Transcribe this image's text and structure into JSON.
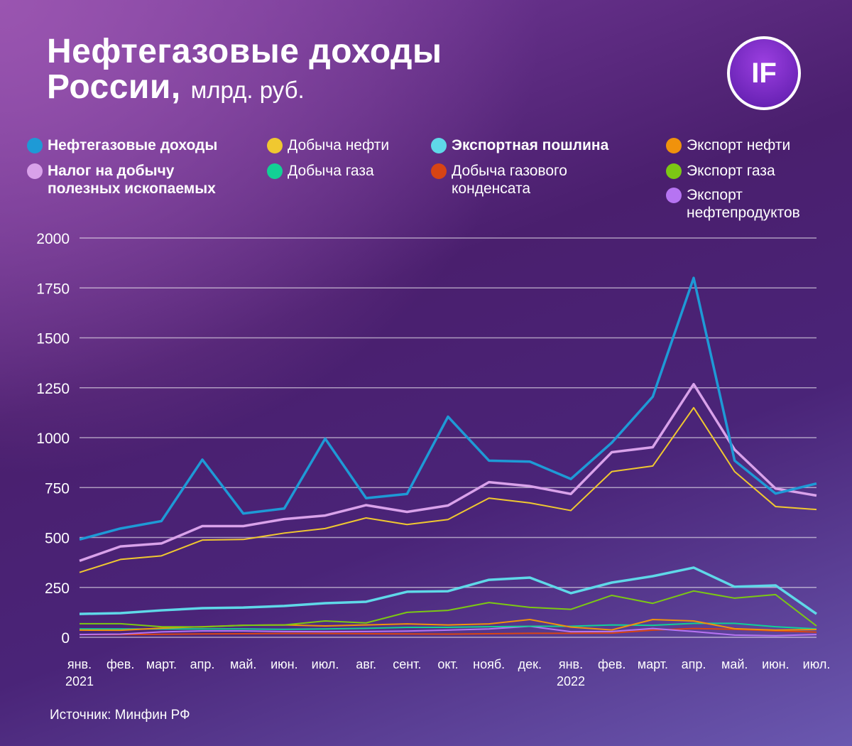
{
  "title": {
    "line1": "Нефтегазовые доходы",
    "line2": "России,",
    "unit": "млрд. руб."
  },
  "logo": "IF",
  "source": "Источник: Минфин РФ",
  "chart_data": {
    "type": "line",
    "ylim": [
      0,
      2000
    ],
    "yticks": [
      "0",
      "250",
      "500",
      "750",
      "1000",
      "1250",
      "1500",
      "1750",
      "2000"
    ],
    "ytick_values": [
      0,
      250,
      500,
      750,
      1000,
      1250,
      1500,
      1750,
      2000
    ],
    "grid": true,
    "legend_position": "top",
    "categories": [
      "янв.",
      "фев.",
      "март.",
      "апр.",
      "май.",
      "июн.",
      "июл.",
      "авг.",
      "сент.",
      "окт.",
      "нояб.",
      "дек.",
      "янв.",
      "фев.",
      "март.",
      "апр.",
      "май.",
      "июн.",
      "июл."
    ],
    "years": [
      {
        "index": 0,
        "label": "2021"
      },
      {
        "index": 12,
        "label": "2022"
      }
    ],
    "series": [
      {
        "name": "Нефтегазовые доходы",
        "color": "#1e9ad6",
        "bold": true,
        "width": 3.5,
        "values": [
          490,
          545,
          582,
          890,
          620,
          645,
          995,
          697,
          718,
          1105,
          885,
          880,
          793,
          975,
          1205,
          1800,
          885,
          720,
          770
        ]
      },
      {
        "name": "Налог на добычу полезных ископаемых",
        "color": "#d9a2ea",
        "bold": true,
        "width": 3.5,
        "values": [
          383,
          455,
          470,
          557,
          557,
          592,
          610,
          662,
          628,
          660,
          777,
          757,
          718,
          927,
          952,
          1268,
          940,
          745,
          710
        ]
      },
      {
        "name": "Добыча нефти",
        "color": "#f0c830",
        "bold": false,
        "width": 2,
        "values": [
          325,
          390,
          408,
          487,
          490,
          522,
          545,
          598,
          565,
          590,
          697,
          673,
          635,
          830,
          858,
          1150,
          830,
          655,
          640
        ]
      },
      {
        "name": "Добыча газа",
        "color": "#12d095",
        "bold": false,
        "width": 2,
        "values": [
          42,
          42,
          42,
          42,
          42,
          40,
          42,
          45,
          50,
          50,
          53,
          55,
          55,
          62,
          60,
          70,
          70,
          53,
          42
        ]
      },
      {
        "name": "Экспортная пошлина",
        "color": "#5fd8e8",
        "bold": true,
        "width": 3.5,
        "values": [
          117,
          121,
          135,
          146,
          149,
          157,
          171,
          178,
          228,
          231,
          288,
          299,
          221,
          274,
          306,
          349,
          253,
          260,
          117
        ]
      },
      {
        "name": "Добыча газового конденсата",
        "color": "#d84414",
        "bold": false,
        "width": 2,
        "values": [
          14,
          14,
          15,
          17,
          18,
          19,
          19,
          18,
          17,
          16,
          18,
          20,
          20,
          21,
          36,
          44,
          40,
          32,
          26
        ]
      },
      {
        "name": "Экспорт нефти",
        "color": "#f0920c",
        "bold": false,
        "width": 2,
        "values": [
          36,
          35,
          46,
          53,
          60,
          62,
          57,
          62,
          67,
          62,
          67,
          89,
          51,
          37,
          89,
          82,
          43,
          36,
          39
        ]
      },
      {
        "name": "Экспорт газа",
        "color": "#7cc814",
        "bold": false,
        "width": 2,
        "values": [
          68,
          68,
          53,
          52,
          60,
          62,
          82,
          72,
          125,
          135,
          174,
          150,
          140,
          210,
          170,
          232,
          196,
          214,
          57
        ]
      },
      {
        "name": "Экспорт нефтепродуктов",
        "color": "#b674f2",
        "bold": false,
        "width": 2,
        "values": [
          14,
          16,
          27,
          32,
          32,
          29,
          28,
          29,
          31,
          36,
          42,
          55,
          28,
          29,
          44,
          29,
          11,
          8,
          14
        ]
      }
    ]
  }
}
